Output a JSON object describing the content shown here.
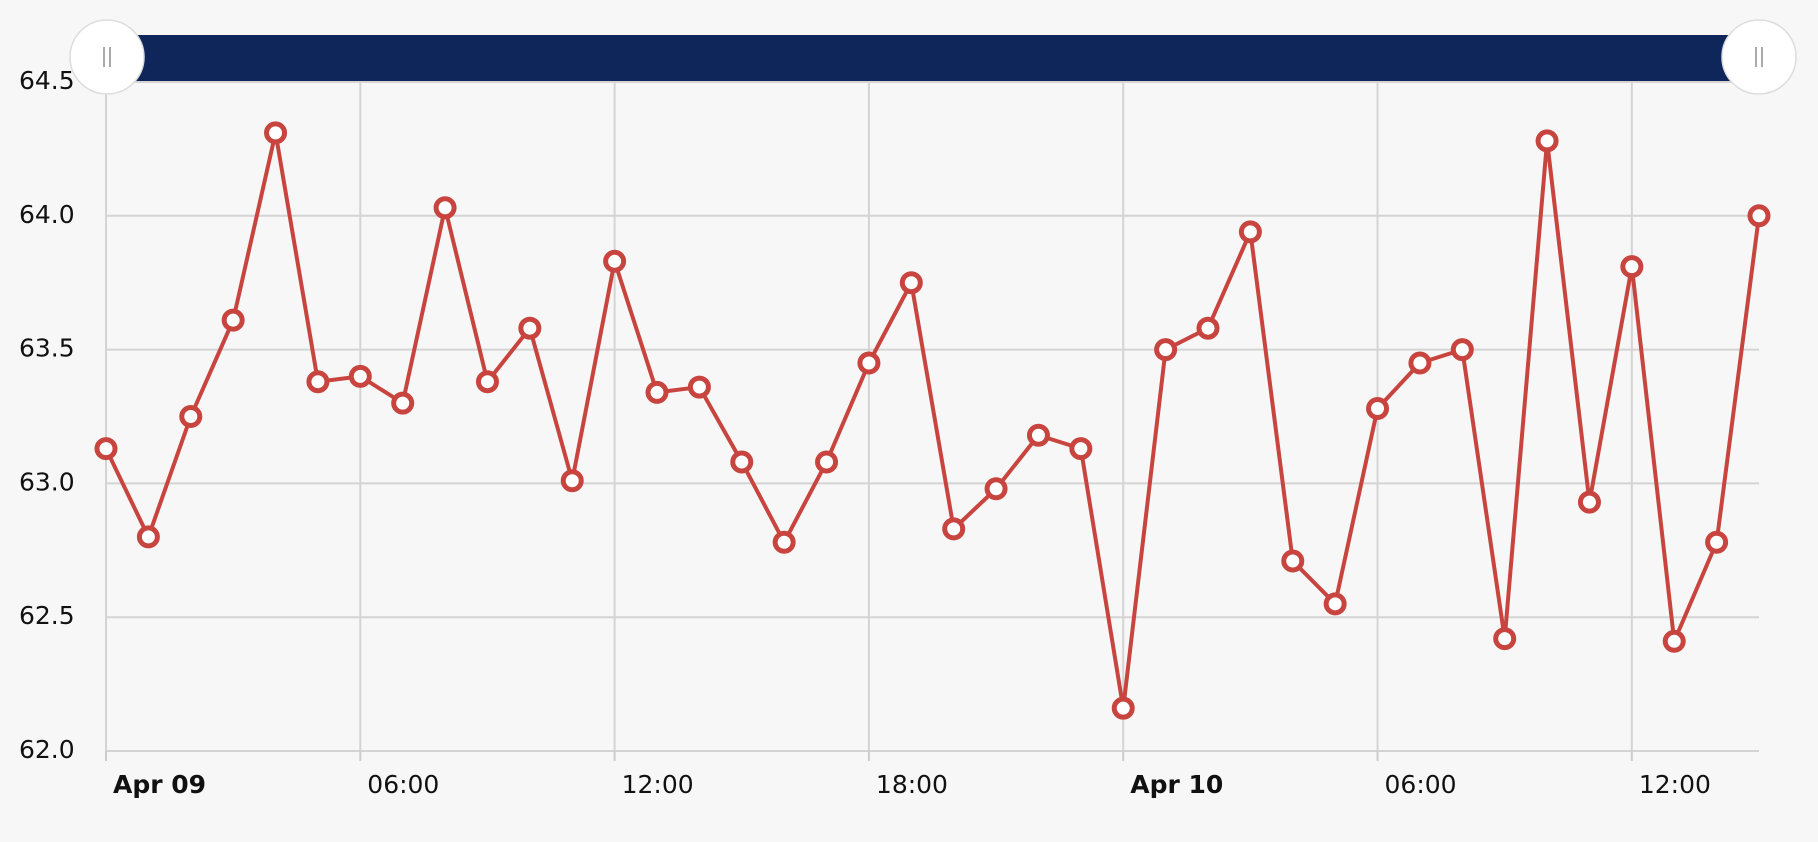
{
  "chart_data": {
    "type": "line",
    "x": [
      0,
      1,
      2,
      3,
      4,
      5,
      6,
      7,
      8,
      9,
      10,
      11,
      12,
      13,
      14,
      15,
      16,
      17,
      18,
      19,
      20,
      21,
      22,
      23,
      24,
      25,
      26,
      27,
      28,
      29,
      30,
      31,
      32,
      33,
      34,
      35,
      36,
      37,
      38,
      39
    ],
    "series": [
      {
        "color": "#c8453f",
        "values": [
          63.13,
          62.8,
          63.25,
          63.61,
          64.31,
          63.38,
          63.4,
          63.3,
          64.03,
          63.38,
          63.58,
          63.01,
          63.83,
          63.34,
          63.36,
          63.08,
          62.78,
          63.08,
          63.45,
          63.75,
          62.83,
          62.98,
          63.18,
          63.13,
          62.16,
          63.5,
          63.58,
          63.94,
          62.71,
          62.55,
          63.28,
          63.45,
          63.5,
          62.42,
          64.28,
          62.93,
          63.81,
          62.41,
          62.78,
          64.0
        ]
      }
    ],
    "xlim": [
      0,
      39
    ],
    "xticks": [
      {
        "value": 0,
        "label": "Apr 09"
      },
      {
        "value": 6,
        "label": "06:00"
      },
      {
        "value": 12,
        "label": "12:00"
      },
      {
        "value": 18,
        "label": "18:00"
      },
      {
        "value": 24,
        "label": "Apr 10"
      },
      {
        "value": 30,
        "label": "06:00"
      },
      {
        "value": 36,
        "label": "12:00"
      }
    ],
    "ylim": [
      62,
      64.5
    ],
    "yticks": [
      {
        "value": 62,
        "label": "62.0"
      },
      62.5,
      {
        "value": 63,
        "label": "63.0"
      },
      63.5,
      {
        "value": 64,
        "label": "64.0"
      },
      64.5
    ],
    "grid": true
  }
}
